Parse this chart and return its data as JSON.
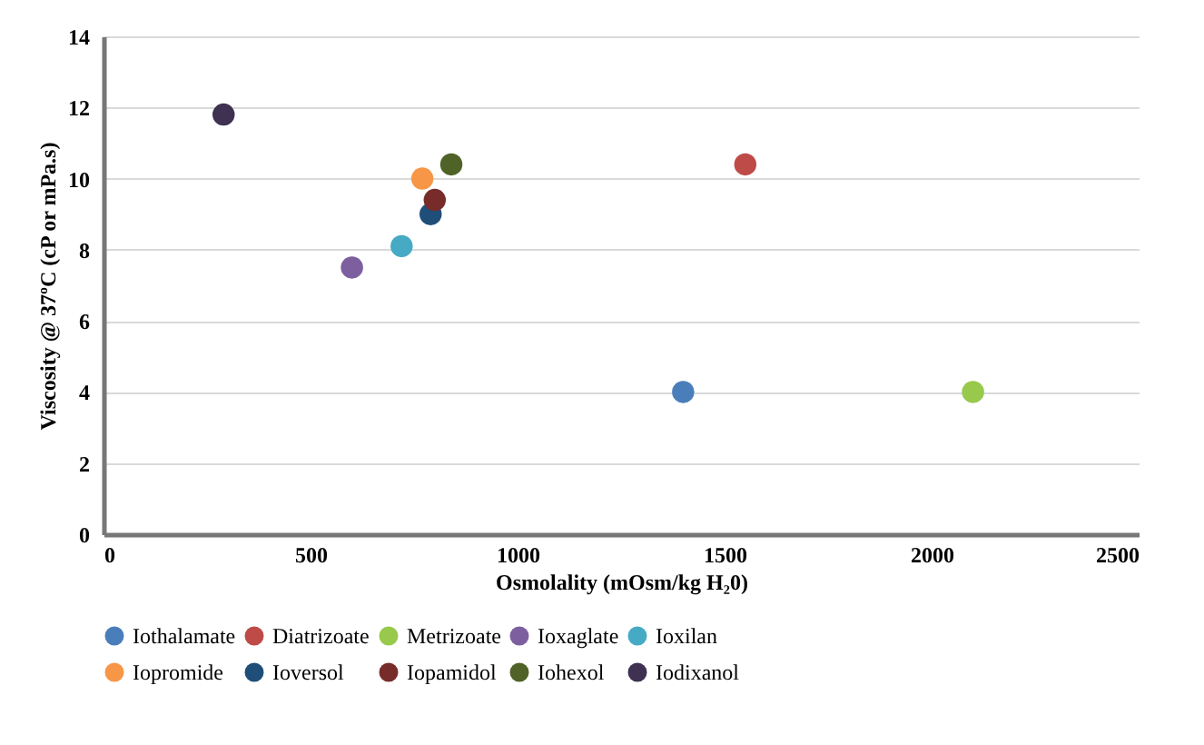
{
  "chart_data": {
    "type": "scatter",
    "xlabel": "Osmolality (mOsm/kg H₂0)",
    "ylabel": "Viscosity @ 37ºC (cP or mPa.s)",
    "xlim": [
      0,
      2500
    ],
    "xticks": [
      0,
      500,
      1000,
      1500,
      2000,
      2500
    ],
    "ylim": [
      0,
      14
    ],
    "yticks": [
      0,
      2,
      4,
      6,
      8,
      10,
      12,
      14
    ],
    "grid": "y",
    "legend": "bottom",
    "marker": "circle",
    "series": [
      {
        "name": "Iothalamate",
        "color": "#4a7ebb",
        "x": [
          1400
        ],
        "values": [
          4
        ]
      },
      {
        "name": "Diatrizoate",
        "color": "#be4b48",
        "x": [
          1550
        ],
        "values": [
          10.4
        ]
      },
      {
        "name": "Metrizoate",
        "color": "#98c94d",
        "x": [
          2100
        ],
        "values": [
          4
        ]
      },
      {
        "name": "Ioxaglate",
        "color": "#7d5fa0",
        "x": [
          600
        ],
        "values": [
          7.5
        ]
      },
      {
        "name": "Ioxilan",
        "color": "#46aac5",
        "x": [
          720
        ],
        "values": [
          8.1
        ]
      },
      {
        "name": "Iopromide",
        "color": "#f79646",
        "x": [
          770
        ],
        "values": [
          10
        ]
      },
      {
        "name": "Ioversol",
        "color": "#1f4e79",
        "x": [
          790
        ],
        "values": [
          9
        ]
      },
      {
        "name": "Iopamidol",
        "color": "#772c2a",
        "x": [
          800
        ],
        "values": [
          9.4
        ]
      },
      {
        "name": "Iohexol",
        "color": "#4f6228",
        "x": [
          840
        ],
        "values": [
          10.4
        ]
      },
      {
        "name": "Iodixanol",
        "color": "#3f3151",
        "x": [
          290
        ],
        "values": [
          11.8
        ]
      }
    ]
  }
}
